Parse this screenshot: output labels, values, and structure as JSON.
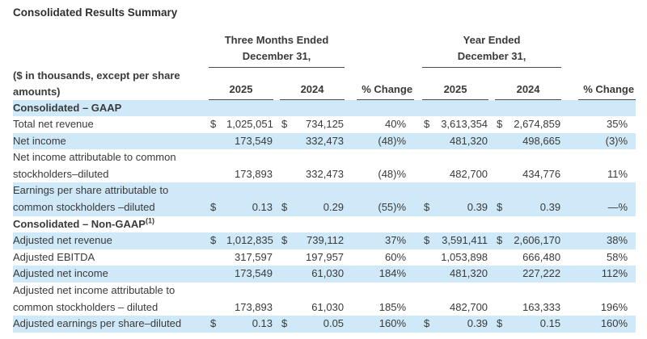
{
  "page_title": "Consolidated Results Summary",
  "colors": {
    "band": "#cfe9f8",
    "rule": "#4c4c4c",
    "text": "#3a3a3a"
  },
  "table": {
    "col_groups": [
      {
        "title_line1": "Three Months Ended",
        "title_line2": "December 31,"
      },
      {
        "title_line1": "Year Ended",
        "title_line2": "December 31,"
      }
    ],
    "stub_header_line1": "($ in thousands, except per share",
    "stub_header_line2": "amounts)",
    "year_headers": [
      "2025",
      "2024",
      "% Change",
      "2025",
      "2024",
      "% Change"
    ],
    "rows": [
      {
        "kind": "section",
        "shaded": true,
        "label": [
          "Consolidated – GAAP"
        ]
      },
      {
        "kind": "data",
        "shaded": false,
        "label": [
          "Total net revenue"
        ],
        "cells": [
          "$",
          "1,025,051",
          "$",
          "734,125",
          "40%",
          "$",
          "3,613,354",
          "$",
          "2,674,859",
          "35%"
        ]
      },
      {
        "kind": "data",
        "shaded": true,
        "label": [
          "Net income"
        ],
        "cells": [
          "",
          "173,549",
          "",
          "332,473",
          "(48)%",
          "",
          "481,320",
          "",
          "498,665",
          "(3)%"
        ]
      },
      {
        "kind": "data",
        "shaded": false,
        "label": [
          "Net income attributable to common",
          "stockholders–diluted"
        ],
        "cells": [
          "",
          "173,893",
          "",
          "332,473",
          "(48)%",
          "",
          "482,700",
          "",
          "434,776",
          "11%"
        ]
      },
      {
        "kind": "data",
        "shaded": true,
        "label": [
          "Earnings per share attributable to",
          "common stockholders –diluted"
        ],
        "cells": [
          "$",
          "0.13",
          "$",
          "0.29",
          "(55)%",
          "$",
          "0.39",
          "$",
          "0.39",
          "—%"
        ]
      },
      {
        "kind": "section",
        "shaded": false,
        "label": [
          "Consolidated – Non-GAAP"
        ],
        "sup": "(1)"
      },
      {
        "kind": "data",
        "shaded": true,
        "label": [
          "Adjusted net revenue"
        ],
        "cells": [
          "$",
          "1,012,835",
          "$",
          "739,112",
          "37%",
          "$",
          "3,591,411",
          "$",
          "2,606,170",
          "38%"
        ]
      },
      {
        "kind": "data",
        "shaded": false,
        "label": [
          "Adjusted EBITDA"
        ],
        "cells": [
          "",
          "317,597",
          "",
          "197,957",
          "60%",
          "",
          "1,053,898",
          "",
          "666,480",
          "58%"
        ]
      },
      {
        "kind": "data",
        "shaded": true,
        "label": [
          "Adjusted net income"
        ],
        "cells": [
          "",
          "173,549",
          "",
          "61,030",
          "184%",
          "",
          "481,320",
          "",
          "227,222",
          "112%"
        ]
      },
      {
        "kind": "data",
        "shaded": false,
        "label": [
          "Adjusted net income attributable to",
          "common stockholders – diluted"
        ],
        "cells": [
          "",
          "173,893",
          "",
          "61,030",
          "185%",
          "",
          "482,700",
          "",
          "163,333",
          "196%"
        ]
      },
      {
        "kind": "data",
        "shaded": true,
        "label": [
          "Adjusted earnings per share–diluted"
        ],
        "cells": [
          "$",
          "0.13",
          "$",
          "0.05",
          "160%",
          "$",
          "0.39",
          "$",
          "0.15",
          "160%"
        ]
      }
    ]
  }
}
